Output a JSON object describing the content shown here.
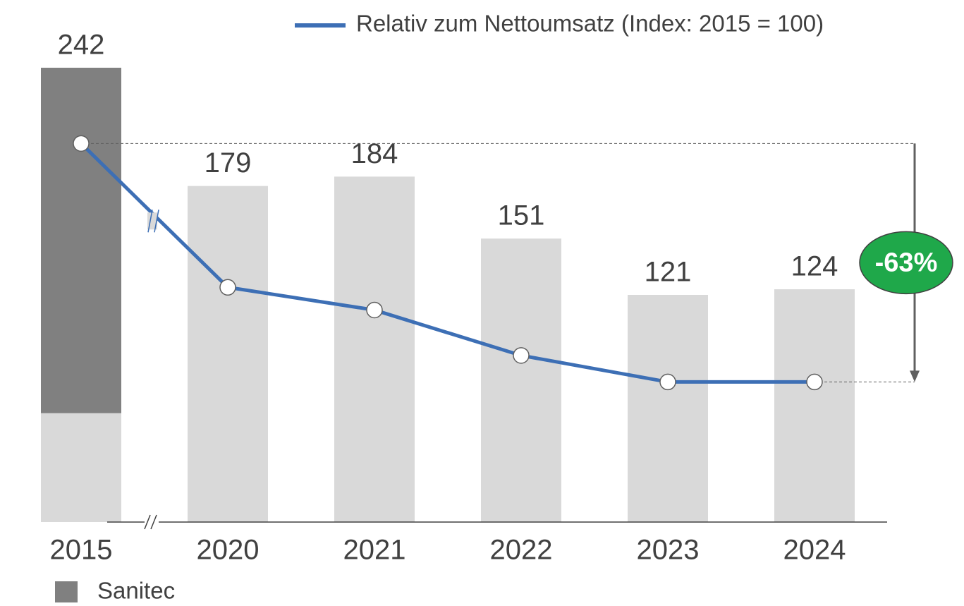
{
  "chart_data": {
    "type": "bar",
    "categories": [
      "2015",
      "2020",
      "2021",
      "2022",
      "2023",
      "2024"
    ],
    "series": [
      {
        "color": "#d9d9d9",
        "values": [
          58,
          179,
          184,
          151,
          121,
          124
        ]
      },
      {
        "name": "Sanitec",
        "color": "#808080",
        "values": [
          184,
          0,
          0,
          0,
          0,
          0
        ]
      },
      {
        "name": "Relativ zum Nettoumsatz (Index: 2015 = 100)",
        "type": "line",
        "axis": "y2",
        "color": "#3d6fb5",
        "values": [
          100,
          62,
          56,
          44,
          37,
          37
        ]
      }
    ],
    "totals": [
      242,
      179,
      184,
      151,
      121,
      124
    ],
    "annotation": "-63%",
    "annotation_color": "#1fa84a",
    "ylim": [
      0,
      242
    ],
    "y2lim": [
      0,
      120
    ]
  }
}
